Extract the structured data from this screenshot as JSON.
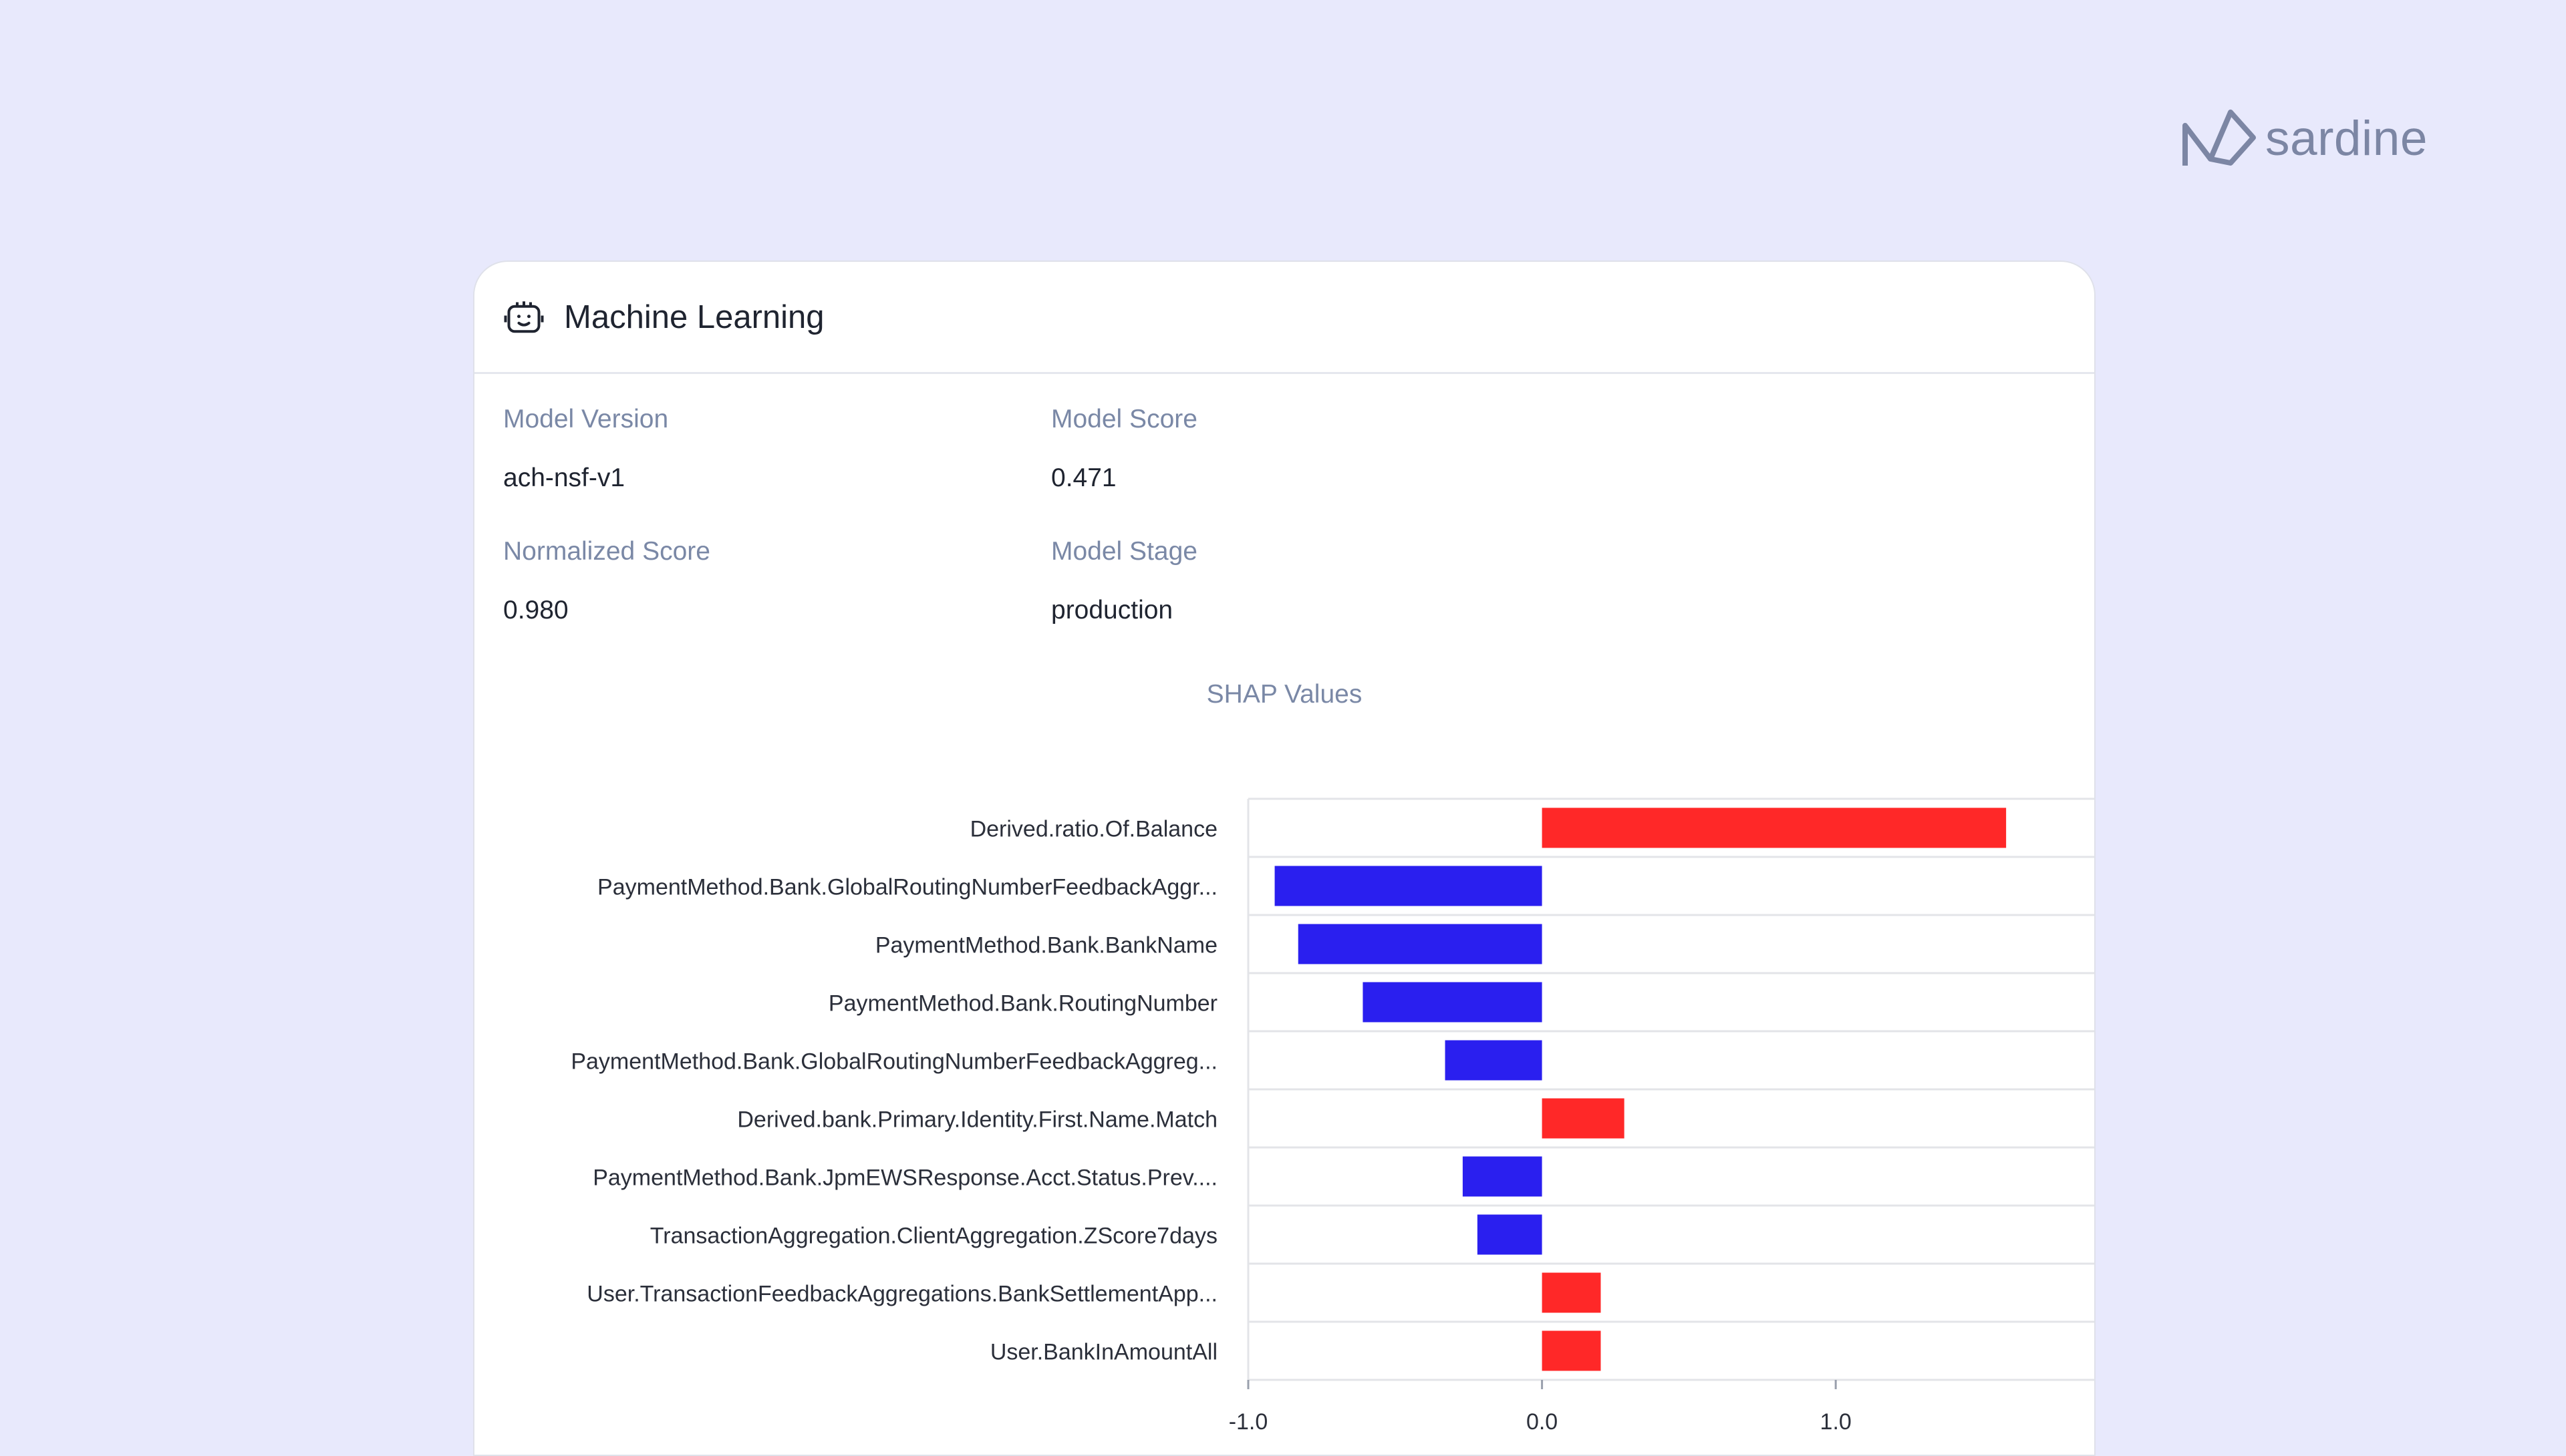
{
  "brand": {
    "name": "sardine"
  },
  "card": {
    "title": "Machine Learning",
    "icon": "robot-icon",
    "fields": [
      {
        "label": "Model Version",
        "value": "ach-nsf-v1"
      },
      {
        "label": "Model Score",
        "value": "0.471"
      },
      {
        "label": "Normalized Score",
        "value": "0.980"
      },
      {
        "label": "Model Stage",
        "value": "production"
      }
    ]
  },
  "chart_data": {
    "type": "bar",
    "orientation": "horizontal",
    "title": "SHAP Values",
    "categories": [
      "Derived.ratio.Of.Balance",
      "PaymentMethod.Bank.GlobalRoutingNumberFeedbackAggr...",
      "PaymentMethod.Bank.BankName",
      "PaymentMethod.Bank.RoutingNumber",
      "PaymentMethod.Bank.GlobalRoutingNumberFeedbackAggreg...",
      "Derived.bank.Primary.Identity.First.Name.Match",
      "PaymentMethod.Bank.JpmEWSResponse.Acct.Status.Prev....",
      "TransactionAggregation.ClientAggregation.ZScore7days",
      "User.TransactionFeedbackAggregations.BankSettlementApp...",
      "User.BankInAmountAll"
    ],
    "values": [
      1.58,
      -0.91,
      -0.83,
      -0.61,
      -0.33,
      0.28,
      -0.27,
      -0.22,
      0.2,
      0.2
    ],
    "xlim": [
      -1.0,
      1.88
    ],
    "xticks": [
      "-1.0",
      "0.0",
      "1.0"
    ],
    "grid": true,
    "colors": {
      "positive": "#ff2828",
      "negative": "#2a1fef"
    }
  }
}
